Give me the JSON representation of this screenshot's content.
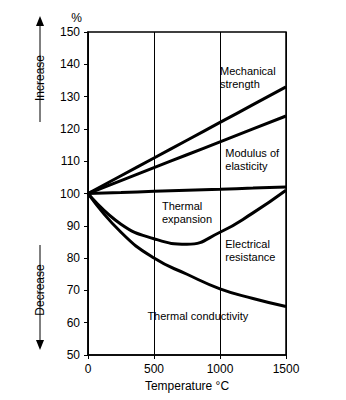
{
  "chart_data": {
    "type": "line",
    "xlabel": "Temperature °C",
    "ylabel": "%",
    "ylabel_up": "Increase",
    "ylabel_down": "Decrease",
    "x": [
      0,
      250,
      500,
      750,
      1000,
      1250,
      1500
    ],
    "series": [
      {
        "name": "Mechanical strength",
        "color": "#000000",
        "values": [
          100,
          105.5,
          111,
          116.5,
          122,
          127.5,
          133
        ]
      },
      {
        "name": "Modulus of elasticity",
        "color": "#000000",
        "values": [
          100,
          104,
          108,
          112,
          116,
          120,
          124
        ]
      },
      {
        "name": "Thermal expansion",
        "color": "#000000",
        "values": [
          100,
          100.3,
          100.7,
          101,
          101.3,
          101.7,
          102
        ]
      },
      {
        "name": "Electrical resistance",
        "color": "#000000",
        "values": [
          100,
          90.5,
          86,
          84.3,
          88,
          94,
          101
        ]
      },
      {
        "name": "Thermal conductivity",
        "color": "#000000",
        "values": [
          100,
          88,
          80,
          75,
          70.5,
          67.5,
          65
        ]
      }
    ],
    "xlim": [
      0,
      1500
    ],
    "xticks": [
      0,
      500,
      1000,
      1500
    ],
    "ylim": [
      50,
      150
    ],
    "yticks": [
      50,
      60,
      70,
      80,
      90,
      100,
      110,
      120,
      130,
      140,
      150
    ],
    "grid": "x"
  }
}
